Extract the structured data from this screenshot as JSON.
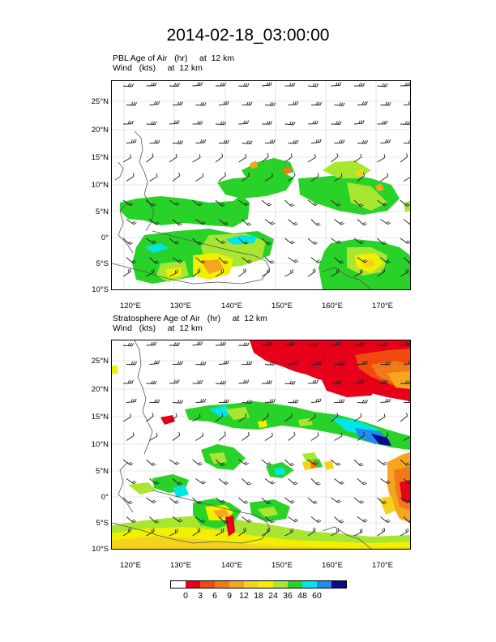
{
  "title": "2014-02-18_03:00:00",
  "panels": [
    {
      "line1": "PBL Age of Air   (hr)     at  12 km",
      "line2": "Wind   (kts)     at  12 km"
    },
    {
      "line1": "Stratosphere Age of Air   (hr)     at  12 km",
      "line2": "Wind   (kts)     at  12 km"
    }
  ],
  "lat_labels": [
    "25°N",
    "20°N",
    "15°N",
    "10°N",
    "5°N",
    "0°",
    "5°S",
    "10°S"
  ],
  "lon_labels": [
    "120°E",
    "130°E",
    "140°E",
    "150°E",
    "160°E",
    "170°E"
  ],
  "colorbar": {
    "labels": [
      "0",
      "3",
      "6",
      "9",
      "12",
      "18",
      "24",
      "36",
      "48",
      "60"
    ],
    "colors": [
      "#ffffff",
      "#e6001a",
      "#f04a10",
      "#f07a18",
      "#f5a520",
      "#f5d21e",
      "#f0f000",
      "#a8e632",
      "#28d228",
      "#00e6e6",
      "#1e8cf0",
      "#0a0a8c"
    ]
  },
  "palette": {
    "land": "#555555",
    "grid": "#cfcfcf",
    "barb": "#222222"
  }
}
